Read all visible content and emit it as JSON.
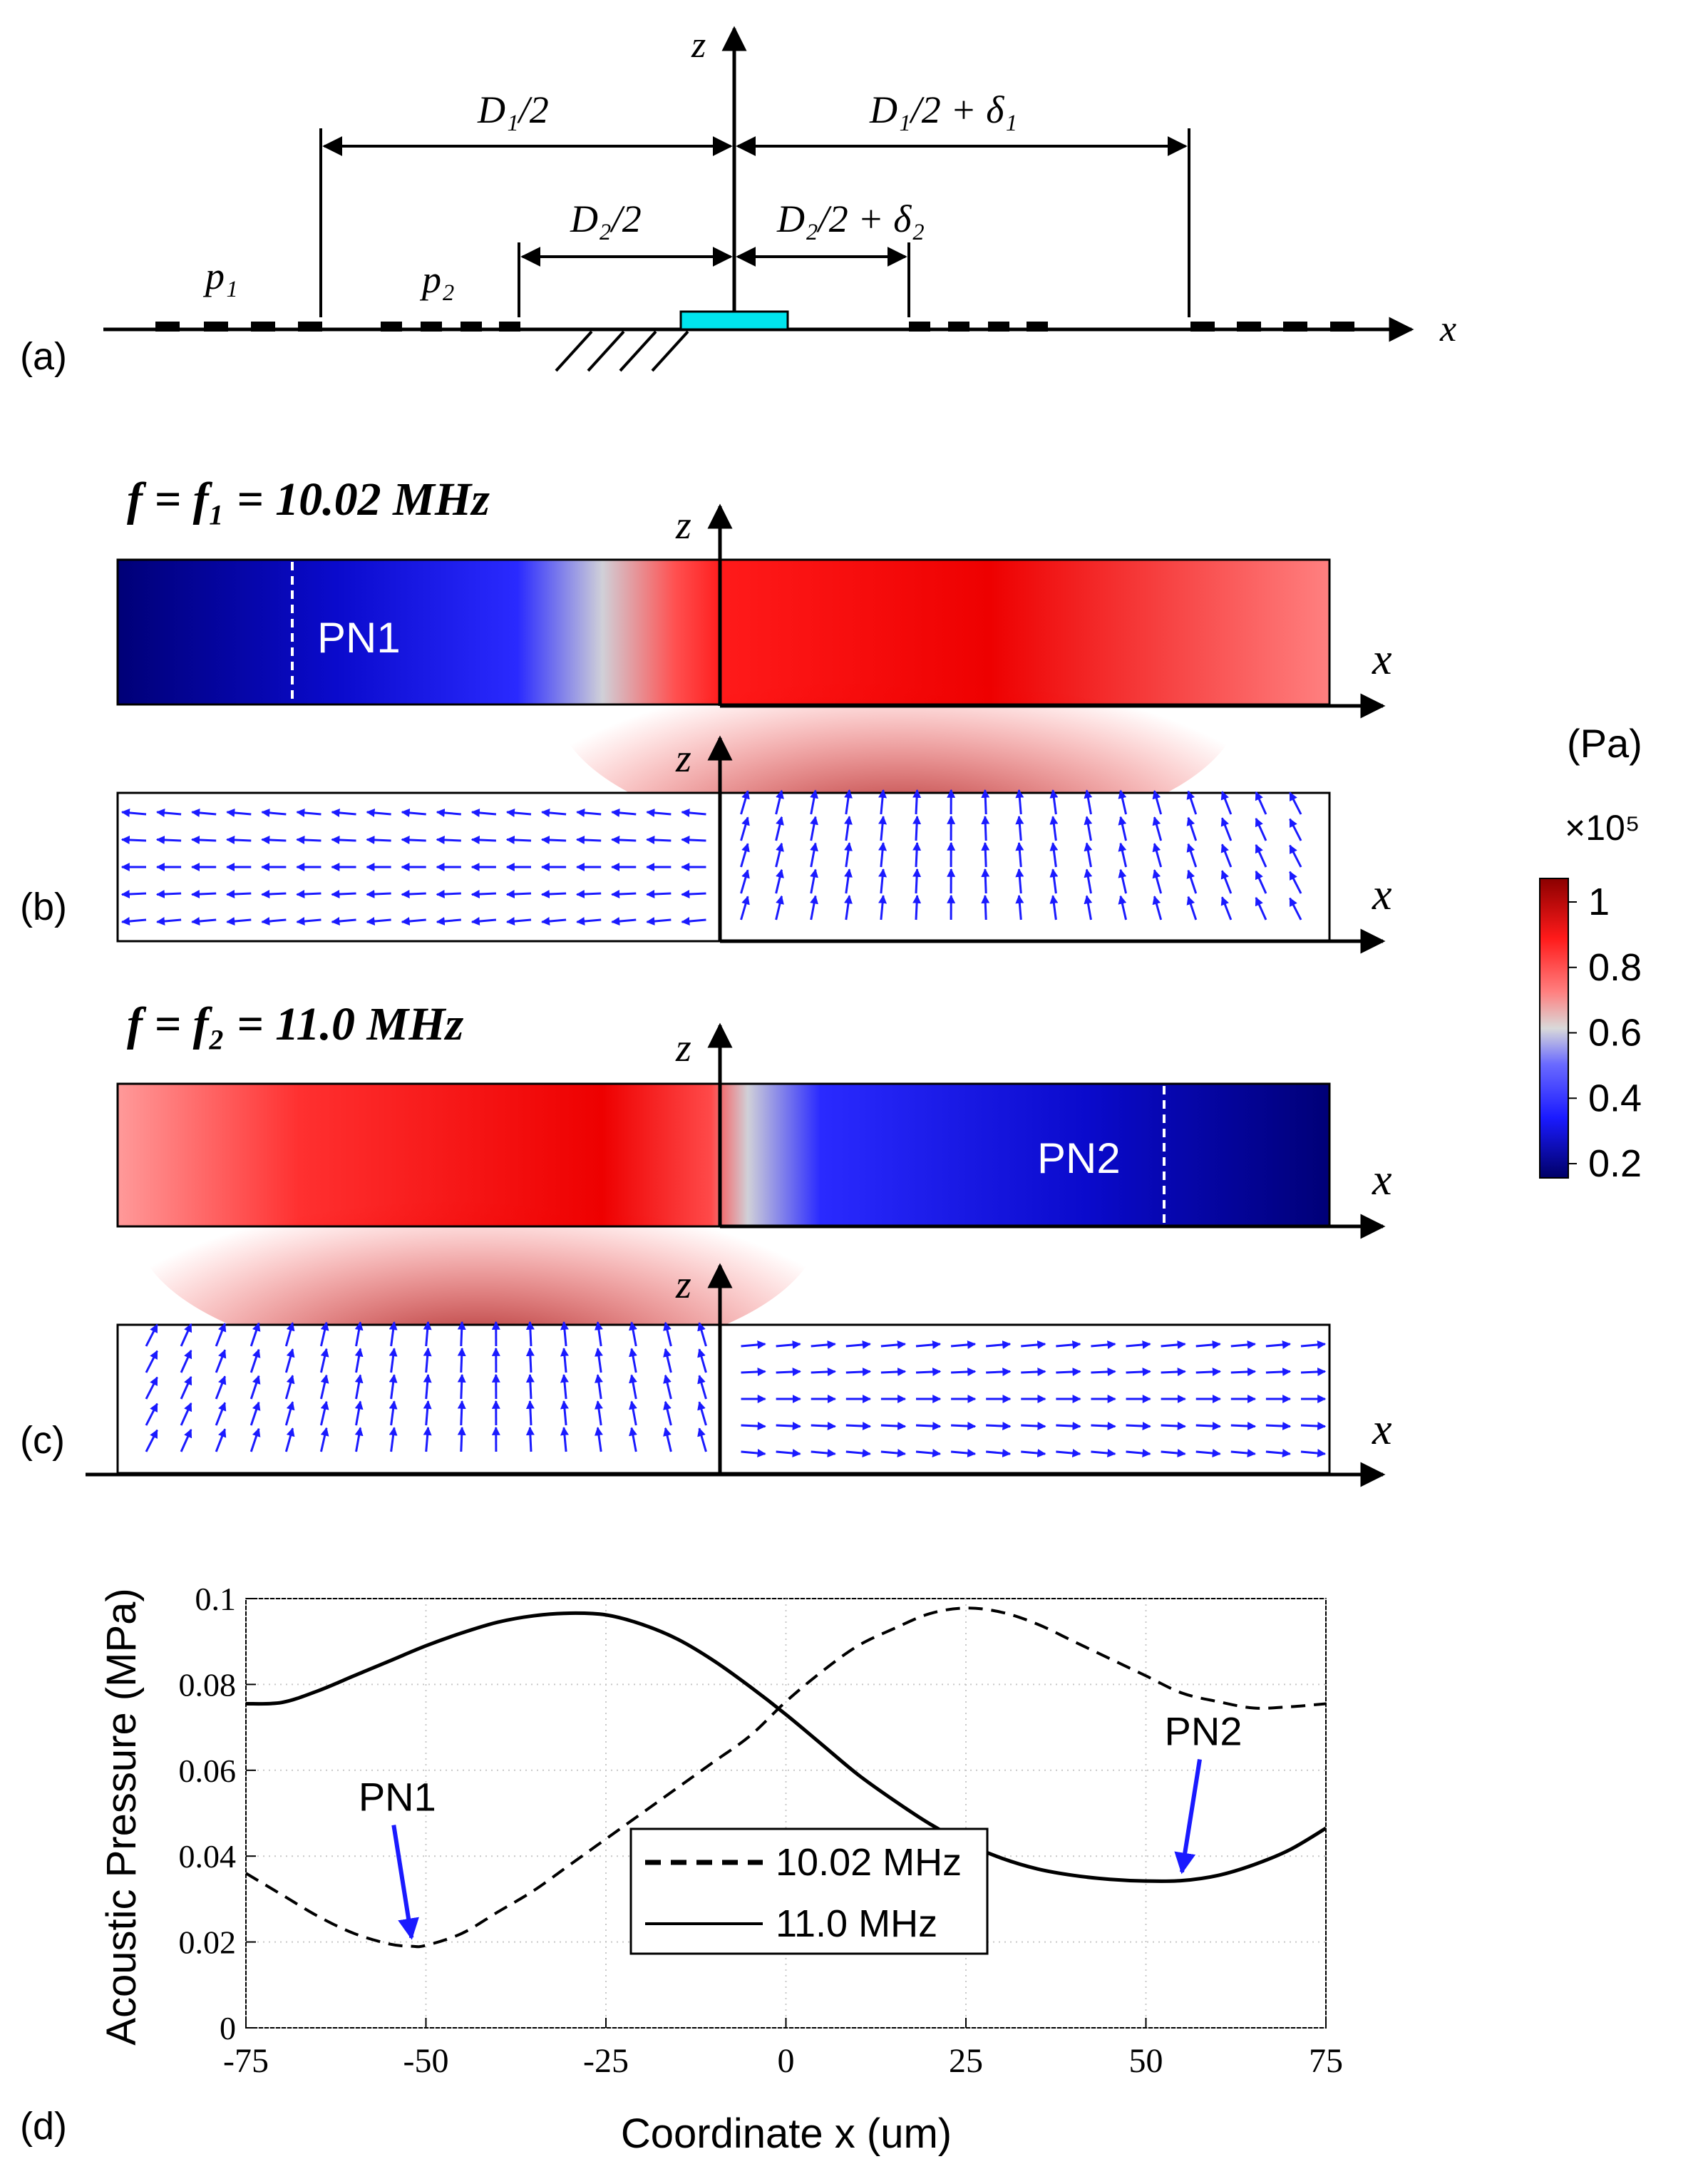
{
  "panel_labels": {
    "a": "(a)",
    "b": "(b)",
    "c": "(c)",
    "d": "(d)"
  },
  "schematic": {
    "axis_z": "z",
    "axis_x": "x",
    "d1_left": "D₁/2",
    "d1_right": "D₁/2 + δ₁",
    "d2_left": "D₂/2",
    "d2_right": "D₂/2 + δ₂",
    "p1": "p₁",
    "p2": "p₂"
  },
  "panel_b": {
    "title": "f = f₁ = 10.02 MHz",
    "axis_z": "z",
    "axis_x": "x",
    "node_label": "PN1"
  },
  "panel_c": {
    "title": "f = f₂ = 11.0 MHz",
    "axis_z": "z",
    "axis_x": "x",
    "node_label": "PN2"
  },
  "colorbar": {
    "unit": "(Pa)",
    "multiplier": "×10⁵",
    "ticks": [
      "1",
      "0.8",
      "0.6",
      "0.4",
      "0.2"
    ],
    "colors": [
      "#8b0000",
      "#ff1a1a",
      "#d9d9d9",
      "#1a1aff",
      "#000066"
    ]
  },
  "chart_data": {
    "type": "line",
    "title": "",
    "xlabel": "Coordinate x (um)",
    "ylabel": "Acoustic Pressure (MPa)",
    "xlim": [
      -75,
      75
    ],
    "ylim": [
      0,
      0.1
    ],
    "x_ticks": [
      "-75",
      "-50",
      "-25",
      "0",
      "25",
      "50",
      "75"
    ],
    "y_ticks": [
      "0",
      "0.02",
      "0.04",
      "0.06",
      "0.08",
      "0.1"
    ],
    "series": [
      {
        "name": "10.02 MHz",
        "style": "dashed",
        "x": [
          -75,
          -70,
          -65,
          -60,
          -55,
          -52,
          -50,
          -45,
          -40,
          -35,
          -30,
          -25,
          -20,
          -15,
          -10,
          -5,
          0,
          5,
          10,
          15,
          20,
          25,
          30,
          35,
          40,
          45,
          50,
          55,
          60,
          65,
          70,
          75
        ],
        "y": [
          0.036,
          0.031,
          0.026,
          0.022,
          0.0195,
          0.019,
          0.0192,
          0.022,
          0.027,
          0.032,
          0.038,
          0.044,
          0.05,
          0.056,
          0.062,
          0.068,
          0.076,
          0.083,
          0.089,
          0.093,
          0.0965,
          0.0978,
          0.0968,
          0.094,
          0.09,
          0.086,
          0.082,
          0.078,
          0.076,
          0.0745,
          0.0748,
          0.0755
        ]
      },
      {
        "name": "11.0 MHz",
        "style": "solid",
        "x": [
          -75,
          -70,
          -65,
          -60,
          -55,
          -50,
          -45,
          -40,
          -35,
          -30,
          -25,
          -20,
          -15,
          -10,
          -5,
          0,
          5,
          10,
          15,
          20,
          25,
          30,
          35,
          40,
          45,
          50,
          55,
          60,
          65,
          70,
          75
        ],
        "y": [
          0.0755,
          0.0758,
          0.0785,
          0.082,
          0.0855,
          0.089,
          0.092,
          0.0945,
          0.096,
          0.0966,
          0.0962,
          0.094,
          0.0905,
          0.0855,
          0.0795,
          0.073,
          0.066,
          0.059,
          0.053,
          0.0475,
          0.043,
          0.0395,
          0.037,
          0.0355,
          0.0346,
          0.0342,
          0.0343,
          0.0355,
          0.038,
          0.0415,
          0.0465
        ]
      }
    ],
    "annotations": [
      {
        "text": "PN1",
        "x": -52,
        "y": 0.019
      },
      {
        "text": "PN2",
        "x": 55,
        "y": 0.0343
      }
    ],
    "legend": "bottom-center"
  }
}
